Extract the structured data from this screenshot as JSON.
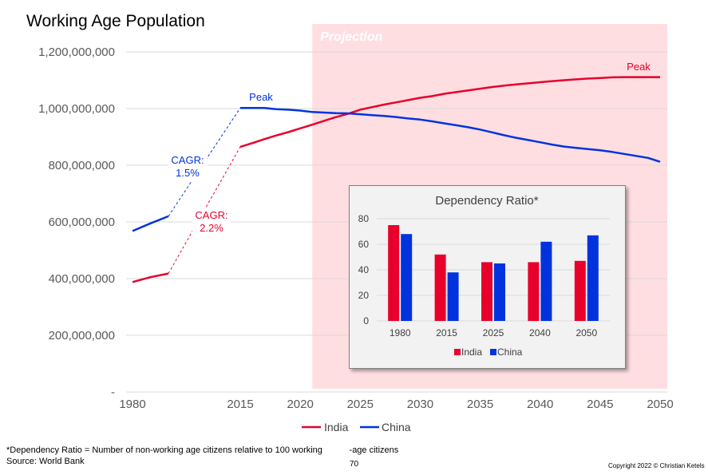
{
  "title": "Working Age Population",
  "projection_label": "Projection",
  "annotations": {
    "peak_india": "Peak",
    "peak_china": "Peak",
    "cagr_china_label": "CAGR:",
    "cagr_china_value": "1.5%",
    "cagr_india_label": "CAGR:",
    "cagr_india_value": "2.2%"
  },
  "colors": {
    "india": "#e8002b",
    "china": "#0033dd",
    "projection_bg": "#ffdee2",
    "grid": "#d9d9d9"
  },
  "chart_data": [
    {
      "type": "line",
      "title": "Working Age Population",
      "x_ticks": [
        "1980",
        "2015",
        "2020",
        "2025",
        "2030",
        "2035",
        "2040",
        "2045",
        "2050"
      ],
      "y_ticks": [
        "-",
        "200,000,000",
        "400,000,000",
        "600,000,000",
        "800,000,000",
        "1,000,000,000",
        "1,200,000,000"
      ],
      "ylim": [
        0,
        1200000000
      ],
      "grid": true,
      "legend": "bottom",
      "projection_start": 2021,
      "series": [
        {
          "name": "India",
          "segments": [
            {
              "x": [
                1980,
                1990,
                2000
              ],
              "y": [
                388000000,
                405000000,
                418000000
              ]
            },
            {
              "x": [
                2015,
                2016,
                2017,
                2018,
                2019,
                2020,
                2021,
                2022,
                2023,
                2024,
                2025,
                2026,
                2027,
                2028,
                2029,
                2030,
                2031,
                2032,
                2033,
                2034,
                2035,
                2036,
                2037,
                2038,
                2039,
                2040,
                2041,
                2042,
                2043,
                2044,
                2045,
                2046,
                2047,
                2048,
                2049,
                2050
              ],
              "y": [
                865000000,
                878000000,
                892000000,
                905000000,
                917000000,
                930000000,
                943000000,
                957000000,
                970000000,
                982000000,
                996000000,
                1005000000,
                1014000000,
                1022000000,
                1030000000,
                1038000000,
                1044000000,
                1052000000,
                1058000000,
                1064000000,
                1070000000,
                1076000000,
                1081000000,
                1085000000,
                1089000000,
                1093000000,
                1097000000,
                1100000000,
                1103000000,
                1106000000,
                1108000000,
                1110000000,
                1111000000,
                1111000000,
                1111000000,
                1111000000
              ]
            }
          ],
          "dashed_link": {
            "x": [
              2000,
              2015
            ],
            "y": [
              418000000,
              865000000
            ]
          }
        },
        {
          "name": "China",
          "segments": [
            {
              "x": [
                1980,
                1990,
                2000
              ],
              "y": [
                568000000,
                595000000,
                620000000
              ]
            },
            {
              "x": [
                2015,
                2016,
                2017,
                2018,
                2019,
                2020,
                2021,
                2022,
                2023,
                2024,
                2025,
                2026,
                2027,
                2028,
                2029,
                2030,
                2031,
                2032,
                2033,
                2034,
                2035,
                2036,
                2037,
                2038,
                2039,
                2040,
                2041,
                2042,
                2043,
                2044,
                2045,
                2046,
                2047,
                2048,
                2049,
                2050
              ],
              "y": [
                1002000000,
                1002000000,
                1002000000,
                998000000,
                996000000,
                993000000,
                988000000,
                986000000,
                984000000,
                983000000,
                980000000,
                977000000,
                974000000,
                970000000,
                965000000,
                961000000,
                955000000,
                948000000,
                941000000,
                934000000,
                926000000,
                916000000,
                906000000,
                897000000,
                889000000,
                881000000,
                873000000,
                866000000,
                861000000,
                857000000,
                853000000,
                847000000,
                840000000,
                833000000,
                826000000,
                812000000
              ]
            }
          ],
          "dashed_link": {
            "x": [
              2000,
              2015
            ],
            "y": [
              620000000,
              1002000000
            ]
          }
        }
      ]
    },
    {
      "type": "bar",
      "title": "Dependency Ratio*",
      "categories": [
        "1980",
        "2015",
        "2025",
        "2040",
        "2050"
      ],
      "series": [
        {
          "name": "India",
          "values": [
            75,
            52,
            46,
            46,
            47
          ]
        },
        {
          "name": "China",
          "values": [
            68,
            38,
            45,
            62,
            67
          ]
        }
      ],
      "y_ticks": [
        "0",
        "20",
        "40",
        "60",
        "80"
      ],
      "ylim": [
        0,
        80
      ],
      "legend": "bottom"
    }
  ],
  "footer": {
    "footnote": "*Dependency Ratio = Number of non-working age citizens relative to 100 working           -age citizens",
    "source": "Source: World Bank",
    "page_number": "70",
    "copyright": "Copyright 2022 © Christian Ketels"
  }
}
